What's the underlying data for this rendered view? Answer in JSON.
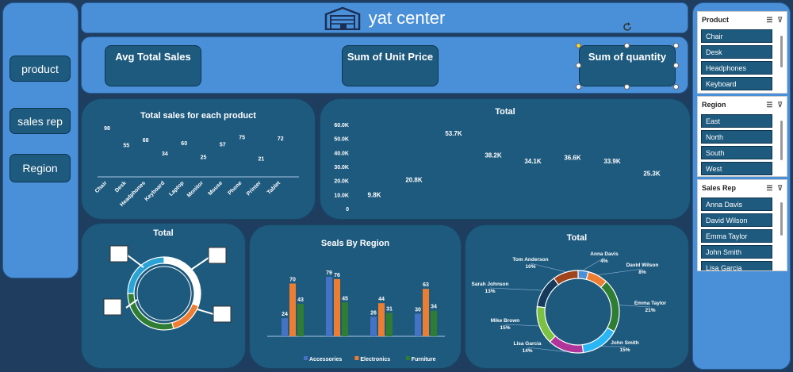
{
  "nav": {
    "items": [
      "product",
      "sales rep",
      "Region"
    ]
  },
  "header": {
    "title": "yat center"
  },
  "kpis": {
    "avg_total_sales": "Avg Total Sales",
    "sum_unit_price": "Sum of Unit Price",
    "sum_quantity": "Sum of quantity"
  },
  "charts": {
    "product_sales": {
      "title": "Total sales for each product",
      "chart_data": {
        "type": "bar",
        "categories": [
          "Chair",
          "Desk",
          "Headphones",
          "Keyboard",
          "Laptop",
          "Monitor",
          "Mouse",
          "Phone",
          "Printer",
          "Tablet"
        ],
        "values": [
          98,
          55,
          68,
          34,
          60,
          25,
          57,
          75,
          21,
          72
        ],
        "data_labels": [
          "98",
          "55",
          "68",
          "34",
          "60",
          "25",
          "57",
          "75",
          "21",
          "72"
        ]
      }
    },
    "total_line": {
      "title": "Total",
      "chart_data": {
        "type": "line",
        "values": [
          9.8,
          20.8,
          53.7,
          38.2,
          34.1,
          36.6,
          33.9,
          25.3
        ],
        "data_labels": [
          "9.8K",
          "20.8K",
          "53.7K",
          "38.2K",
          "34.1K",
          "36.6K",
          "33.9K",
          "25.3K"
        ],
        "y_ticks": [
          "0",
          "10.0K",
          "20.0K",
          "30.0K",
          "40.0K",
          "50.0K",
          "60.0K"
        ],
        "ylim": [
          0,
          60
        ]
      }
    },
    "total_donut": {
      "title": "Total"
    },
    "seals_by_region": {
      "title": "Seals By Region",
      "chart_data": {
        "type": "bar",
        "series": [
          {
            "name": "Accessories",
            "color": "#4472c4",
            "values": [
              24,
              79,
              26,
              30
            ]
          },
          {
            "name": "Electronics",
            "color": "#ed7d31",
            "values": [
              70,
              76,
              44,
              63
            ]
          },
          {
            "name": "Furniture",
            "color": "#2e7d32",
            "values": [
              43,
              45,
              31,
              34
            ]
          }
        ],
        "legend": [
          "Accessories",
          "Electronics",
          "Furniture"
        ]
      }
    },
    "rep_donut": {
      "title": "Total",
      "chart_data": {
        "type": "pie",
        "slices": [
          {
            "name": "Anna Davis",
            "pct": 4,
            "pct_label": "4%",
            "color": "#4a90d9"
          },
          {
            "name": "David Wilson",
            "pct": 8,
            "pct_label": "8%",
            "color": "#ed7d31"
          },
          {
            "name": "Emma Taylor",
            "pct": 21,
            "pct_label": "21%",
            "color": "#2e7d32"
          },
          {
            "name": "John Smith",
            "pct": 15,
            "pct_label": "15%",
            "color": "#29b6f6"
          },
          {
            "name": "Lisa Garcia",
            "pct": 14,
            "pct_label": "14%",
            "color": "#b0359a"
          },
          {
            "name": "Mike Brown",
            "pct": 15,
            "pct_label": "15%",
            "color": "#7cc242"
          },
          {
            "name": "Sarah Johnson",
            "pct": 13,
            "pct_label": "13%",
            "color": "#163a5c"
          },
          {
            "name": "Tom Anderson",
            "pct": 10,
            "pct_label": "10%",
            "color": "#a0441c"
          }
        ]
      }
    }
  },
  "slicers": [
    {
      "title": "Product",
      "items": [
        "Chair",
        "Desk",
        "Headphones",
        "Keyboard"
      ]
    },
    {
      "title": "Region",
      "items": [
        "East",
        "North",
        "South",
        "West"
      ]
    },
    {
      "title": "Sales Rep",
      "items": [
        "Anna Davis",
        "David Wilson",
        "Emma Taylor",
        "John Smith",
        "Lisa Garcia"
      ]
    }
  ]
}
